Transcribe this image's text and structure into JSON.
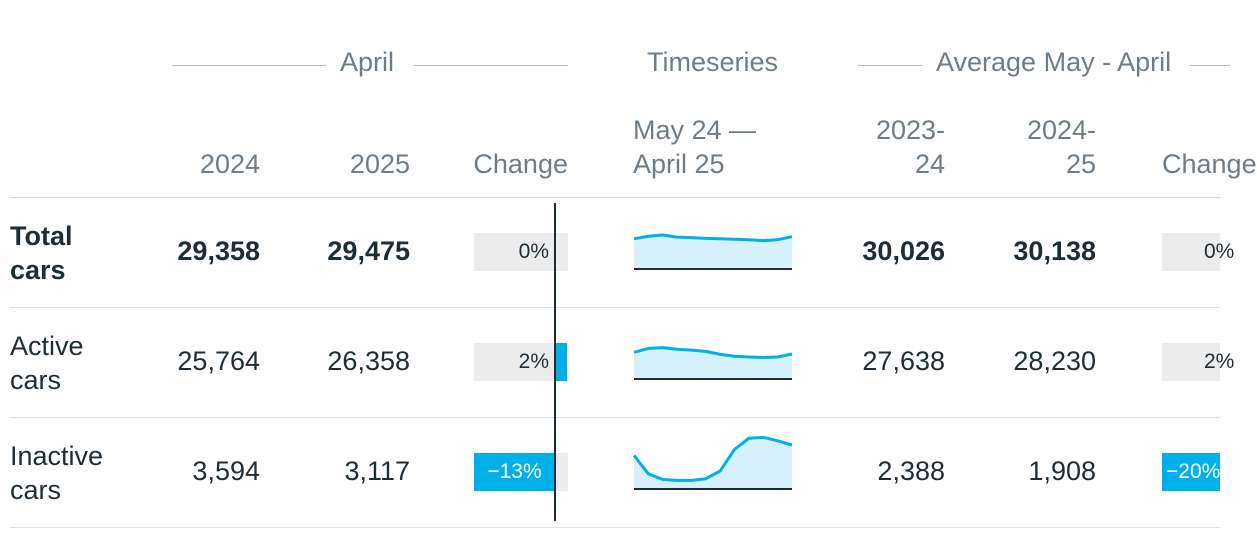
{
  "groups": {
    "april": "April",
    "timeseries": "Timeseries",
    "average": "Average May - April"
  },
  "columns": {
    "y2024": "2024",
    "y2025": "2025",
    "change": "Change",
    "timeseries_l1": "May 24 —",
    "timeseries_l2": "April 25",
    "avg1_l1": "2023-",
    "avg1_l2": "24",
    "avg2_l1": "2024-",
    "avg2_l2": "25",
    "change2": "Change"
  },
  "colors": {
    "accent": "#00b0ea",
    "spark_fill": "#d6f1fb",
    "bar_bg": "#ececec",
    "text": "#1d2d35",
    "muted": "#6e7d85"
  },
  "chart_data": {
    "type": "table",
    "change_scale_max_pct": 13,
    "rows": [
      {
        "label_l1": "Total",
        "label_l2": "cars",
        "bold": true,
        "april_2024": "29,358",
        "april_2025": "29,475",
        "change": 0,
        "change_label": "0%",
        "spark": [
          0.7,
          0.76,
          0.79,
          0.74,
          0.73,
          0.71,
          0.7,
          0.69,
          0.68,
          0.66,
          0.68,
          0.75
        ],
        "avg_2023_24": "30,026",
        "avg_2024_25": "30,138",
        "avg_change": 0,
        "avg_change_label": "0%"
      },
      {
        "label_l1": "Active",
        "label_l2": "cars",
        "bold": false,
        "april_2024": "25,764",
        "april_2025": "26,358",
        "change": 2,
        "change_label": "2%",
        "spark": [
          0.62,
          0.71,
          0.73,
          0.69,
          0.67,
          0.64,
          0.57,
          0.53,
          0.51,
          0.5,
          0.51,
          0.58
        ],
        "avg_2023_24": "27,638",
        "avg_2024_25": "28,230",
        "avg_change": 2,
        "avg_change_label": "2%"
      },
      {
        "label_l1": "Inactive",
        "label_l2": "cars",
        "bold": false,
        "april_2024": "3,594",
        "april_2025": "3,117",
        "change": -13,
        "change_label": "−13%",
        "spark": [
          0.78,
          0.35,
          0.22,
          0.2,
          0.2,
          0.24,
          0.42,
          0.92,
          1.18,
          1.2,
          1.12,
          1.02
        ],
        "avg_2023_24": "2,388",
        "avg_2024_25": "1,908",
        "avg_change": -20,
        "avg_change_label": "−20%"
      }
    ]
  }
}
